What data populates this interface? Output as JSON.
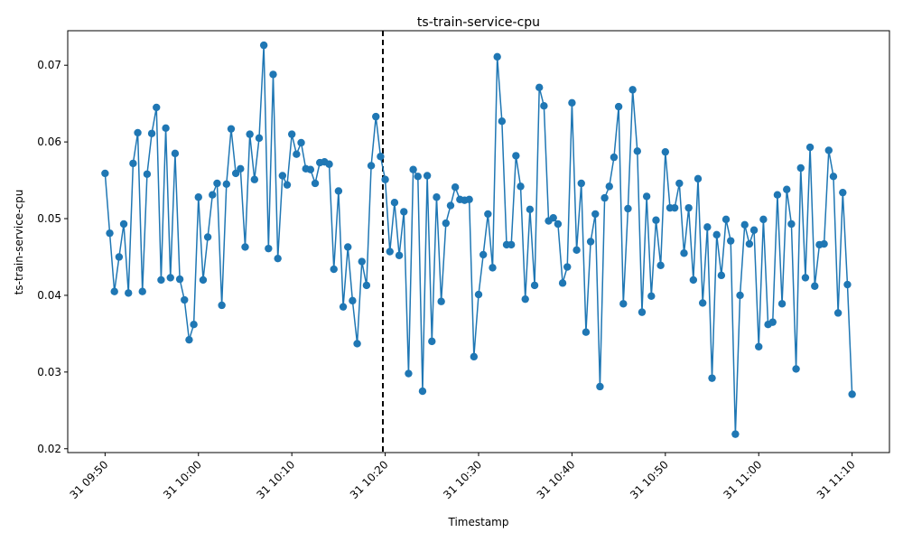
{
  "chart_data": {
    "type": "line",
    "title": "ts-train-service-cpu",
    "xlabel": "Timestamp",
    "ylabel": "ts-train-service-cpu",
    "x_tick_labels": [
      "31 09:50",
      "31 10:00",
      "31 10:10",
      "31 10:20",
      "31 10:30",
      "31 10:40",
      "31 10:50",
      "31 11:00",
      "31 11:10"
    ],
    "y_tick_labels": [
      "0.02",
      "0.03",
      "0.04",
      "0.05",
      "0.06",
      "0.07"
    ],
    "ylim": [
      0.0195,
      0.0745
    ],
    "grid": false,
    "series_color": "#1f77b4",
    "marker": "circle",
    "vline": {
      "x": "2024-05-31 10:19:45",
      "style": "dashed",
      "color": "#000000"
    },
    "series": [
      {
        "x": [
          "2024-05-31 09:50:00",
          "2024-05-31 09:50:30",
          "2024-05-31 09:51:00",
          "2024-05-31 09:51:30",
          "2024-05-31 09:52:00",
          "2024-05-31 09:52:30",
          "2024-05-31 09:53:00",
          "2024-05-31 09:53:30",
          "2024-05-31 09:54:00",
          "2024-05-31 09:54:30",
          "2024-05-31 09:55:00",
          "2024-05-31 09:55:30",
          "2024-05-31 09:56:00",
          "2024-05-31 09:56:30",
          "2024-05-31 09:57:00",
          "2024-05-31 09:57:30",
          "2024-05-31 09:58:00",
          "2024-05-31 09:58:30",
          "2024-05-31 09:59:00",
          "2024-05-31 09:59:30",
          "2024-05-31 10:00:00",
          "2024-05-31 10:00:30",
          "2024-05-31 10:01:00",
          "2024-05-31 10:01:30",
          "2024-05-31 10:02:00",
          "2024-05-31 10:02:30",
          "2024-05-31 10:03:00",
          "2024-05-31 10:03:30",
          "2024-05-31 10:04:00",
          "2024-05-31 10:04:30",
          "2024-05-31 10:05:00",
          "2024-05-31 10:05:30",
          "2024-05-31 10:06:00",
          "2024-05-31 10:06:30",
          "2024-05-31 10:07:00",
          "2024-05-31 10:07:30",
          "2024-05-31 10:08:00",
          "2024-05-31 10:08:30",
          "2024-05-31 10:09:00",
          "2024-05-31 10:09:30",
          "2024-05-31 10:10:00",
          "2024-05-31 10:10:30",
          "2024-05-31 10:11:00",
          "2024-05-31 10:11:30",
          "2024-05-31 10:12:00",
          "2024-05-31 10:12:30",
          "2024-05-31 10:13:00",
          "2024-05-31 10:13:30",
          "2024-05-31 10:14:00",
          "2024-05-31 10:14:30",
          "2024-05-31 10:15:00",
          "2024-05-31 10:15:30",
          "2024-05-31 10:16:00",
          "2024-05-31 10:16:30",
          "2024-05-31 10:17:00",
          "2024-05-31 10:17:30",
          "2024-05-31 10:18:00",
          "2024-05-31 10:18:30",
          "2024-05-31 10:19:00",
          "2024-05-31 10:19:30",
          "2024-05-31 10:20:00",
          "2024-05-31 10:20:30",
          "2024-05-31 10:21:00",
          "2024-05-31 10:21:30",
          "2024-05-31 10:22:00",
          "2024-05-31 10:22:30",
          "2024-05-31 10:23:00",
          "2024-05-31 10:23:30",
          "2024-05-31 10:24:00",
          "2024-05-31 10:24:30",
          "2024-05-31 10:25:00",
          "2024-05-31 10:25:30",
          "2024-05-31 10:26:00",
          "2024-05-31 10:26:30",
          "2024-05-31 10:27:00",
          "2024-05-31 10:27:30",
          "2024-05-31 10:28:00",
          "2024-05-31 10:28:30",
          "2024-05-31 10:29:00",
          "2024-05-31 10:29:30",
          "2024-05-31 10:30:00",
          "2024-05-31 10:30:30",
          "2024-05-31 10:31:00",
          "2024-05-31 10:31:30",
          "2024-05-31 10:32:00",
          "2024-05-31 10:32:30",
          "2024-05-31 10:33:00",
          "2024-05-31 10:33:30",
          "2024-05-31 10:34:00",
          "2024-05-31 10:34:30",
          "2024-05-31 10:35:00",
          "2024-05-31 10:35:30",
          "2024-05-31 10:36:00",
          "2024-05-31 10:36:30",
          "2024-05-31 10:37:00",
          "2024-05-31 10:37:30",
          "2024-05-31 10:38:00",
          "2024-05-31 10:38:30",
          "2024-05-31 10:39:00",
          "2024-05-31 10:39:30",
          "2024-05-31 10:40:00",
          "2024-05-31 10:40:30",
          "2024-05-31 10:41:00",
          "2024-05-31 10:41:30",
          "2024-05-31 10:42:00",
          "2024-05-31 10:42:30",
          "2024-05-31 10:43:00",
          "2024-05-31 10:43:30",
          "2024-05-31 10:44:00",
          "2024-05-31 10:44:30",
          "2024-05-31 10:45:00",
          "2024-05-31 10:45:30",
          "2024-05-31 10:46:00",
          "2024-05-31 10:46:30",
          "2024-05-31 10:47:00",
          "2024-05-31 10:47:30",
          "2024-05-31 10:48:00",
          "2024-05-31 10:48:30",
          "2024-05-31 10:49:00",
          "2024-05-31 10:49:30",
          "2024-05-31 10:50:00",
          "2024-05-31 10:50:30",
          "2024-05-31 10:51:00",
          "2024-05-31 10:51:30",
          "2024-05-31 10:52:00",
          "2024-05-31 10:52:30",
          "2024-05-31 10:53:00",
          "2024-05-31 10:53:30",
          "2024-05-31 10:54:00",
          "2024-05-31 10:54:30",
          "2024-05-31 10:55:00",
          "2024-05-31 10:55:30",
          "2024-05-31 10:56:00",
          "2024-05-31 10:56:30",
          "2024-05-31 10:57:00",
          "2024-05-31 10:57:30",
          "2024-05-31 10:58:00",
          "2024-05-31 10:58:30",
          "2024-05-31 10:59:00",
          "2024-05-31 10:59:30",
          "2024-05-31 11:00:00",
          "2024-05-31 11:00:30",
          "2024-05-31 11:01:00",
          "2024-05-31 11:01:30",
          "2024-05-31 11:02:00",
          "2024-05-31 11:02:30",
          "2024-05-31 11:03:00",
          "2024-05-31 11:03:30",
          "2024-05-31 11:04:00",
          "2024-05-31 11:04:30",
          "2024-05-31 11:05:00",
          "2024-05-31 11:05:30",
          "2024-05-31 11:06:00",
          "2024-05-31 11:06:30",
          "2024-05-31 11:07:00",
          "2024-05-31 11:07:30",
          "2024-05-31 11:08:00",
          "2024-05-31 11:08:30",
          "2024-05-31 11:09:00",
          "2024-05-31 11:09:30",
          "2024-05-31 11:10:00"
        ],
        "y": [
          0.0559,
          0.0481,
          0.0405,
          0.045,
          0.0493,
          0.0403,
          0.0572,
          0.0612,
          0.0405,
          0.0558,
          0.0611,
          0.0645,
          0.042,
          0.0618,
          0.0423,
          0.0585,
          0.0421,
          0.0394,
          0.0342,
          0.0362,
          0.0528,
          0.042,
          0.0476,
          0.0531,
          0.0546,
          0.0387,
          0.0545,
          0.0617,
          0.0559,
          0.0565,
          0.0463,
          0.061,
          0.0551,
          0.0605,
          0.0726,
          0.0461,
          0.0688,
          0.0448,
          0.0556,
          0.0544,
          0.061,
          0.0584,
          0.0599,
          0.0565,
          0.0564,
          0.0546,
          0.0573,
          0.0574,
          0.0571,
          0.0434,
          0.0536,
          0.0385,
          0.0463,
          0.0393,
          0.0337,
          0.0444,
          0.0413,
          0.0569,
          0.0633,
          0.0581,
          0.0551,
          0.0457,
          0.0521,
          0.0452,
          0.0509,
          0.0298,
          0.0564,
          0.0555,
          0.0275,
          0.0556,
          0.034,
          0.0528,
          0.0392,
          0.0494,
          0.0517,
          0.0541,
          0.0525,
          0.0524,
          0.0525,
          0.032,
          0.0401,
          0.0453,
          0.0506,
          0.0436,
          0.0711,
          0.0627,
          0.0466,
          0.0466,
          0.0582,
          0.0542,
          0.0395,
          0.0512,
          0.0413,
          0.0671,
          0.0647,
          0.0497,
          0.0501,
          0.0493,
          0.0416,
          0.0437,
          0.0651,
          0.0459,
          0.0546,
          0.0352,
          0.047,
          0.0506,
          0.0281,
          0.0527,
          0.0542,
          0.058,
          0.0646,
          0.0389,
          0.0513,
          0.0668,
          0.0588,
          0.0378,
          0.0529,
          0.0399,
          0.0498,
          0.0439,
          0.0587,
          0.0514,
          0.0514,
          0.0546,
          0.0455,
          0.0514,
          0.042,
          0.0552,
          0.039,
          0.0489,
          0.0292,
          0.0479,
          0.0426,
          0.0499,
          0.0471,
          0.0219,
          0.04,
          0.0492,
          0.0467,
          0.0485,
          0.0333,
          0.0499,
          0.0362,
          0.0365,
          0.0531,
          0.0389,
          0.0538,
          0.0493,
          0.0304,
          0.0566,
          0.0423,
          0.0593,
          0.0412,
          0.0466,
          0.0467,
          0.0589,
          0.0555,
          0.0377,
          0.0534,
          0.0414,
          0.0271
        ]
      }
    ]
  }
}
